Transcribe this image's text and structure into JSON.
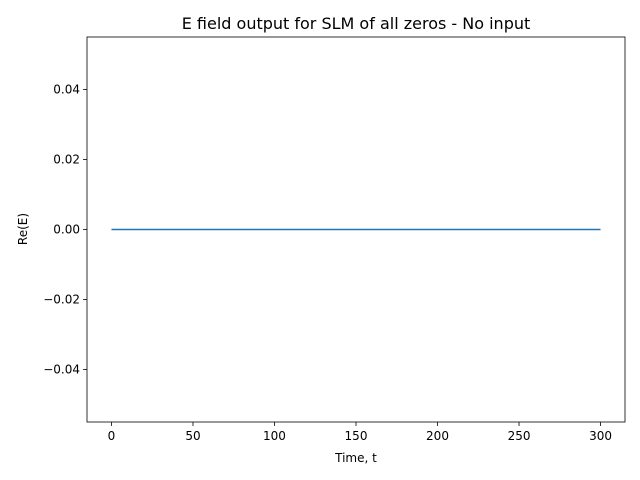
{
  "chart_data": {
    "type": "line",
    "title": "E field output for SLM of all zeros - No input",
    "xlabel": "Time, t",
    "ylabel": "Re(E)",
    "xlim": [
      -15,
      315
    ],
    "ylim": [
      -0.055,
      0.055
    ],
    "xticks": [
      0,
      50,
      100,
      150,
      200,
      250,
      300
    ],
    "xtick_labels": [
      "0",
      "50",
      "100",
      "150",
      "200",
      "250",
      "300"
    ],
    "yticks": [
      -0.04,
      -0.02,
      0.0,
      0.02,
      0.04
    ],
    "ytick_labels": [
      "−0.04",
      "−0.02",
      "0.00",
      "0.02",
      "0.04"
    ],
    "grid": false,
    "series": [
      {
        "color": "#1f77b4",
        "x": [
          0,
          300
        ],
        "y": [
          0.0,
          0.0
        ]
      }
    ]
  }
}
